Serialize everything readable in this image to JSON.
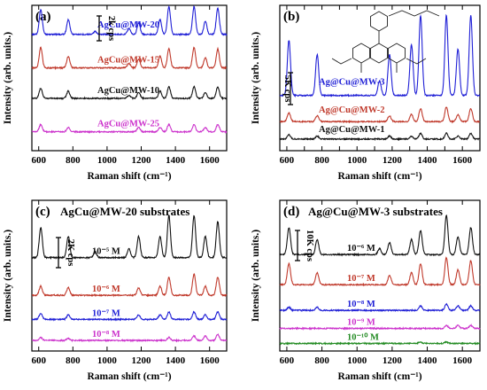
{
  "chart_data": [
    {
      "type": "line",
      "panel": "(a)",
      "title": "",
      "xlabel": "Raman shift (cm⁻¹)",
      "ylabel": "Intensity (arb. units.)",
      "xlim": [
        560,
        1700
      ],
      "xticks": [
        600,
        800,
        1000,
        1200,
        1400,
        1600
      ],
      "scale_bar": "2k cps",
      "series": [
        {
          "name": "AgCu@MW-20",
          "color": "#1f1fd6",
          "baseline": 0.8,
          "peaks": [
            [
              612,
              0.17
            ],
            [
              773,
              0.1
            ],
            [
              930,
              0.02
            ],
            [
              1128,
              0.04
            ],
            [
              1185,
              0.08
            ],
            [
              1310,
              0.1
            ],
            [
              1362,
              0.19
            ],
            [
              1509,
              0.19
            ],
            [
              1575,
              0.09
            ],
            [
              1648,
              0.18
            ]
          ]
        },
        {
          "name": "AgCu@MW-15",
          "color": "#c0392b",
          "baseline": 0.57,
          "peaks": [
            [
              612,
              0.14
            ],
            [
              773,
              0.08
            ],
            [
              1128,
              0.03
            ],
            [
              1185,
              0.06
            ],
            [
              1310,
              0.08
            ],
            [
              1362,
              0.13
            ],
            [
              1509,
              0.14
            ],
            [
              1575,
              0.07
            ],
            [
              1648,
              0.13
            ]
          ]
        },
        {
          "name": "AgCu@MW-10",
          "color": "#111111",
          "baseline": 0.36,
          "peaks": [
            [
              612,
              0.07
            ],
            [
              773,
              0.05
            ],
            [
              1128,
              0.02
            ],
            [
              1185,
              0.04
            ],
            [
              1310,
              0.05
            ],
            [
              1362,
              0.08
            ],
            [
              1509,
              0.08
            ],
            [
              1575,
              0.04
            ],
            [
              1648,
              0.08
            ]
          ]
        },
        {
          "name": "AgCu@MW-25",
          "color": "#cc33cc",
          "baseline": 0.13,
          "peaks": [
            [
              612,
              0.05
            ],
            [
              773,
              0.03
            ],
            [
              1185,
              0.03
            ],
            [
              1310,
              0.03
            ],
            [
              1362,
              0.05
            ],
            [
              1509,
              0.05
            ],
            [
              1575,
              0.03
            ],
            [
              1648,
              0.05
            ]
          ]
        }
      ]
    },
    {
      "type": "line",
      "panel": "(b)",
      "title": "",
      "xlabel": "Raman shift (cm⁻¹)",
      "ylabel": "Intensity (arb. units.)",
      "xlim": [
        560,
        1700
      ],
      "xticks": [
        600,
        700,
        800,
        900,
        1000,
        1100,
        1200,
        1300,
        1400,
        1500,
        1600,
        1700
      ],
      "xticklabels": [
        600,
        800,
        1000,
        1200,
        1400,
        1600
      ],
      "scale_bar": "5K cps",
      "series": [
        {
          "name": "Ag@Cu@MW-3",
          "color": "#1f1fd6",
          "baseline": 0.38,
          "peaks": [
            [
              612,
              0.38
            ],
            [
              773,
              0.28
            ],
            [
              1128,
              0.1
            ],
            [
              1185,
              0.28
            ],
            [
              1310,
              0.35
            ],
            [
              1362,
              0.55
            ],
            [
              1509,
              0.55
            ],
            [
              1575,
              0.32
            ],
            [
              1648,
              0.55
            ]
          ]
        },
        {
          "name": "Ag@Cu@MW-2",
          "color": "#c0392b",
          "baseline": 0.2,
          "peaks": [
            [
              612,
              0.06
            ],
            [
              773,
              0.04
            ],
            [
              1185,
              0.04
            ],
            [
              1310,
              0.05
            ],
            [
              1362,
              0.09
            ],
            [
              1509,
              0.1
            ],
            [
              1575,
              0.05
            ],
            [
              1648,
              0.09
            ]
          ]
        },
        {
          "name": "Ag@Cu@MW-1",
          "color": "#111111",
          "baseline": 0.08,
          "peaks": [
            [
              612,
              0.03
            ],
            [
              773,
              0.02
            ],
            [
              1185,
              0.02
            ],
            [
              1310,
              0.02
            ],
            [
              1362,
              0.04
            ],
            [
              1509,
              0.04
            ],
            [
              1575,
              0.02
            ],
            [
              1648,
              0.04
            ]
          ]
        }
      ]
    },
    {
      "type": "line",
      "panel": "(c)",
      "title": "AgCu@MW-20 substrates",
      "xlabel": "Raman shift (cm⁻¹)",
      "ylabel": "Intensity (arb. units.)",
      "xlim": [
        560,
        1700
      ],
      "xticks": [
        600,
        800,
        1000,
        1200,
        1400,
        1600
      ],
      "scale_bar": "2K cps",
      "series": [
        {
          "name": "10⁻⁵ M",
          "color": "#111111",
          "baseline": 0.62,
          "peaks": [
            [
              612,
              0.2
            ],
            [
              773,
              0.14
            ],
            [
              930,
              0.04
            ],
            [
              1128,
              0.06
            ],
            [
              1185,
              0.14
            ],
            [
              1310,
              0.14
            ],
            [
              1362,
              0.28
            ],
            [
              1509,
              0.28
            ],
            [
              1575,
              0.14
            ],
            [
              1648,
              0.24
            ]
          ]
        },
        {
          "name": "10⁻⁶ M",
          "color": "#c0392b",
          "baseline": 0.37,
          "peaks": [
            [
              612,
              0.06
            ],
            [
              773,
              0.05
            ],
            [
              1185,
              0.05
            ],
            [
              1310,
              0.06
            ],
            [
              1362,
              0.12
            ],
            [
              1509,
              0.14
            ],
            [
              1575,
              0.06
            ],
            [
              1648,
              0.12
            ]
          ]
        },
        {
          "name": "10⁻⁷ M",
          "color": "#1f1fd6",
          "baseline": 0.21,
          "peaks": [
            [
              612,
              0.04
            ],
            [
              773,
              0.03
            ],
            [
              1185,
              0.03
            ],
            [
              1310,
              0.03
            ],
            [
              1362,
              0.05
            ],
            [
              1509,
              0.05
            ],
            [
              1575,
              0.03
            ],
            [
              1648,
              0.05
            ]
          ]
        },
        {
          "name": "10⁻⁸ M",
          "color": "#cc33cc",
          "baseline": 0.07,
          "peaks": [
            [
              612,
              0.02
            ],
            [
              773,
              0.015
            ],
            [
              1362,
              0.02
            ],
            [
              1509,
              0.03
            ],
            [
              1575,
              0.03
            ],
            [
              1648,
              0.04
            ]
          ]
        }
      ]
    },
    {
      "type": "line",
      "panel": "(d)",
      "title": "Ag@Cu@MW-3 substrates",
      "xlabel": "Raman shift (cm⁻¹)",
      "ylabel": "Intensity (arb. units.)",
      "xlim": [
        560,
        1700
      ],
      "xticks": [
        600,
        800,
        1000,
        1200,
        1400,
        1600
      ],
      "scale_bar": "10K cps",
      "series": [
        {
          "name": "10⁻⁶ M",
          "color": "#111111",
          "baseline": 0.64,
          "peaks": [
            [
              612,
              0.18
            ],
            [
              773,
              0.1
            ],
            [
              1128,
              0.04
            ],
            [
              1185,
              0.08
            ],
            [
              1310,
              0.1
            ],
            [
              1362,
              0.16
            ],
            [
              1509,
              0.26
            ],
            [
              1575,
              0.12
            ],
            [
              1648,
              0.18
            ]
          ]
        },
        {
          "name": "10⁻⁷ M",
          "color": "#c0392b",
          "baseline": 0.44,
          "peaks": [
            [
              612,
              0.14
            ],
            [
              773,
              0.08
            ],
            [
              1185,
              0.06
            ],
            [
              1310,
              0.08
            ],
            [
              1362,
              0.14
            ],
            [
              1509,
              0.18
            ],
            [
              1575,
              0.1
            ],
            [
              1648,
              0.16
            ]
          ]
        },
        {
          "name": "10⁻⁸ M",
          "color": "#1f1fd6",
          "baseline": 0.27,
          "peaks": [
            [
              612,
              0.02
            ],
            [
              773,
              0.02
            ],
            [
              1362,
              0.03
            ],
            [
              1509,
              0.04
            ],
            [
              1575,
              0.03
            ],
            [
              1648,
              0.03
            ]
          ]
        },
        {
          "name": "10⁻⁹ M",
          "color": "#cc33cc",
          "baseline": 0.15,
          "peaks": [
            [
              1509,
              0.02
            ],
            [
              1575,
              0.02
            ],
            [
              1648,
              0.02
            ]
          ]
        },
        {
          "name": "10⁻¹⁰ M",
          "color": "#228b22",
          "baseline": 0.05,
          "peaks": [
            [
              1362,
              0.01
            ],
            [
              1509,
              0.01
            ]
          ]
        }
      ]
    }
  ]
}
